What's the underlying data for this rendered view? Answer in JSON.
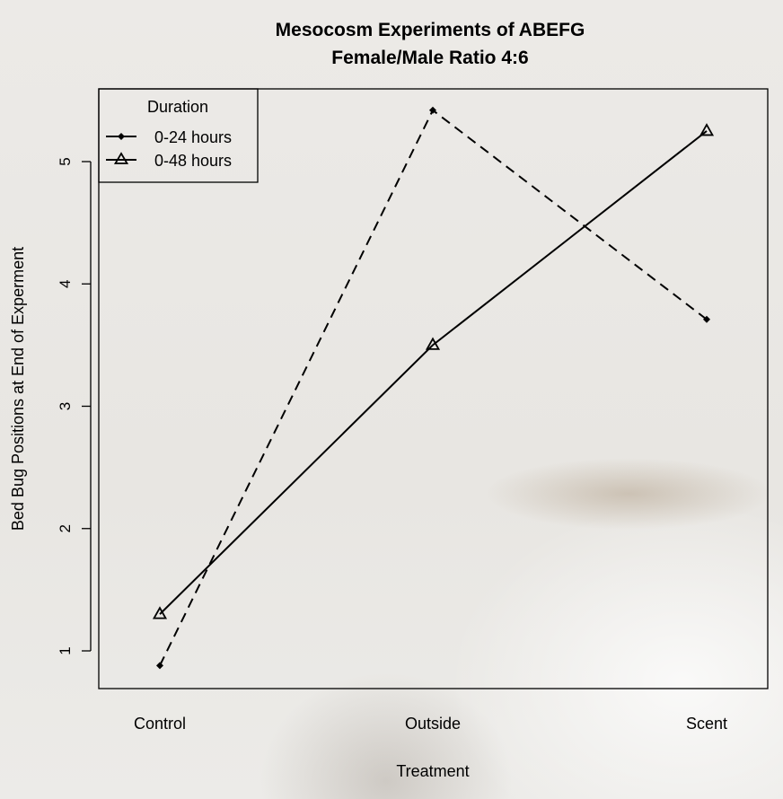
{
  "chart_data": {
    "type": "line",
    "title": "Mesocosm Experiments of ABEFG",
    "subtitle": "Female/Male Ratio 4:6",
    "xlabel": "Treatment",
    "ylabel": "Bed Bug Positions at End of Experment",
    "categories": [
      "Control",
      "Outside",
      "Scent"
    ],
    "y_ticks": [
      1,
      2,
      3,
      4,
      5
    ],
    "ylim": [
      0.7,
      5.6
    ],
    "grid": false,
    "legend": {
      "title": "Duration",
      "placement": "top-left",
      "entries": [
        "0-24 hours",
        "0-48 hours"
      ]
    },
    "series": [
      {
        "name": "0-24 hours",
        "values": [
          0.88,
          5.42,
          3.71
        ],
        "line_style": "dashed",
        "marker": "diamond"
      },
      {
        "name": "0-48 hours",
        "values": [
          1.3,
          3.5,
          5.25
        ],
        "line_style": "solid",
        "marker": "triangle"
      }
    ],
    "colors": {
      "line": "#000000"
    }
  }
}
